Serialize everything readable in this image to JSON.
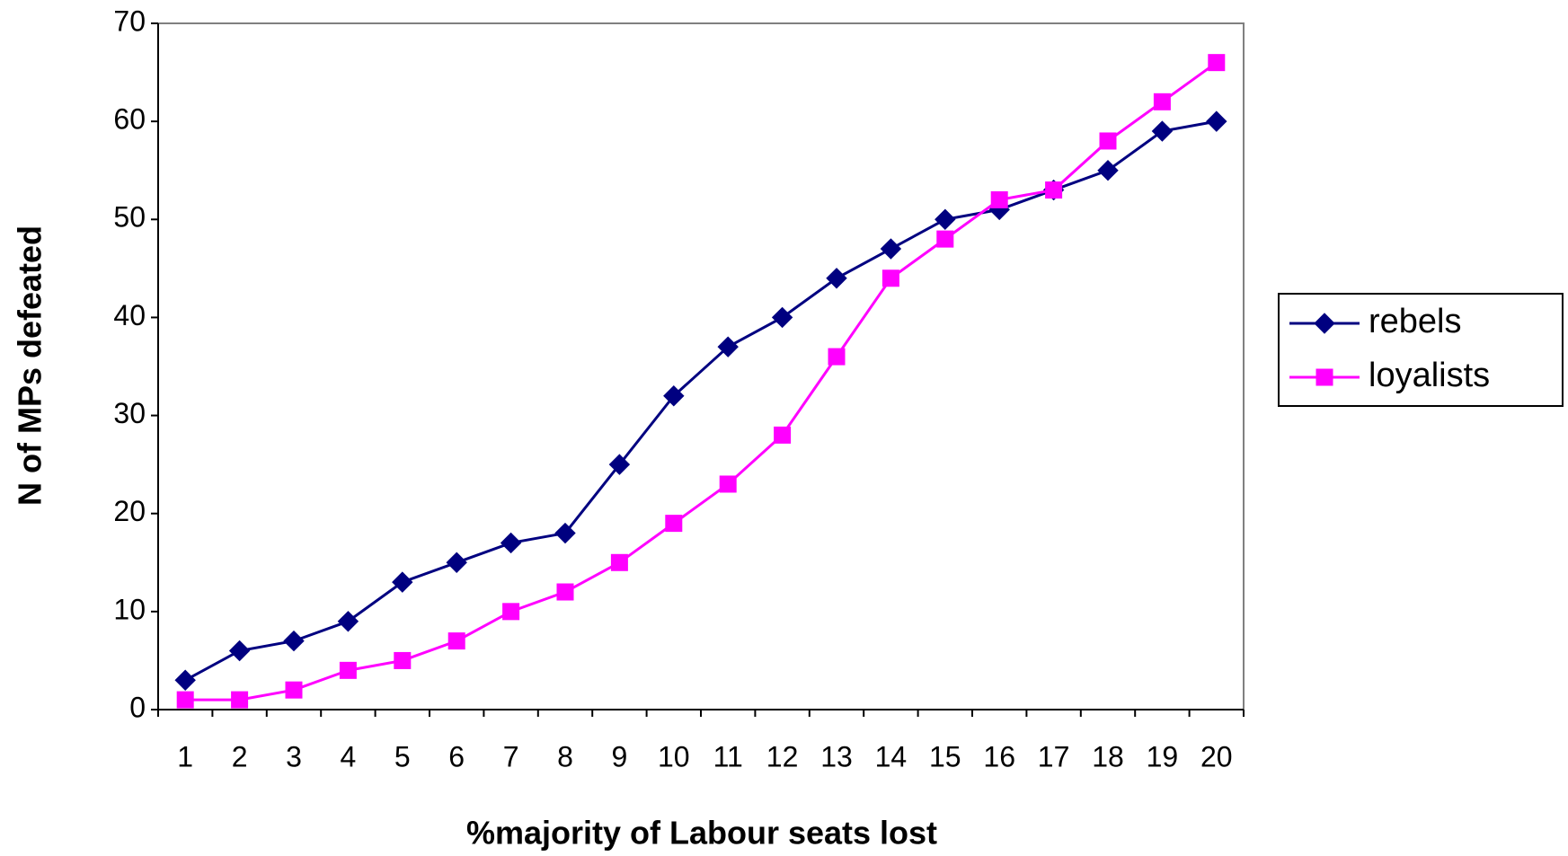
{
  "chart_data": {
    "type": "line",
    "xlabel": "%majority of Labour seats lost",
    "ylabel": "N of MPs defeated",
    "categories": [
      "1",
      "2",
      "3",
      "4",
      "5",
      "6",
      "7",
      "8",
      "9",
      "10",
      "11",
      "12",
      "13",
      "14",
      "15",
      "16",
      "17",
      "18",
      "19",
      "20"
    ],
    "series": [
      {
        "name": "rebels",
        "color": "#000080",
        "marker": "diamond",
        "values": [
          3,
          6,
          7,
          9,
          13,
          15,
          17,
          18,
          25,
          32,
          37,
          40,
          44,
          47,
          50,
          51,
          53,
          55,
          59,
          60
        ]
      },
      {
        "name": "loyalists",
        "color": "#ff00ff",
        "marker": "square",
        "values": [
          1,
          1,
          2,
          4,
          5,
          7,
          10,
          12,
          15,
          19,
          23,
          28,
          36,
          44,
          48,
          52,
          53,
          58,
          62,
          66
        ]
      }
    ],
    "ylim": [
      0,
      70
    ],
    "yticks": [
      0,
      10,
      20,
      30,
      40,
      50,
      60,
      70
    ],
    "grid": false,
    "legend": "right"
  }
}
